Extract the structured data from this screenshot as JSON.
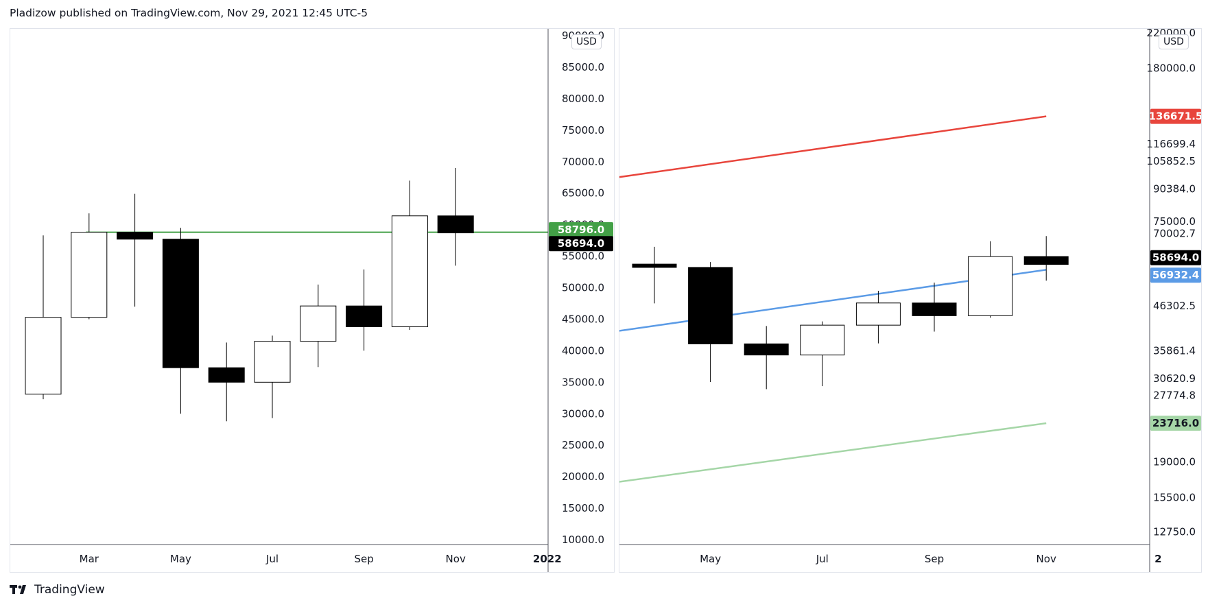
{
  "header": {
    "text": "Pladizow published on TradingView.com, Nov 29, 2021 12:45 UTC-5"
  },
  "footer": {
    "brand": "TradingView"
  },
  "colors": {
    "up_body": "#ffffff",
    "down_body": "#000000",
    "wick": "#000000",
    "green_line": "#43a047",
    "blue_line": "#5b9be6",
    "red_line": "#e8453c",
    "light_green_line": "#a5d6a7",
    "axis_border": "#50535e"
  },
  "chart_data": [
    {
      "type": "candlestick",
      "currency": "USD",
      "price_axis": {
        "min": 10000,
        "max": 90000,
        "scale": "linear",
        "ticks": [
          "10000.0",
          "15000.0",
          "20000.0",
          "25000.0",
          "30000.0",
          "35000.0",
          "40000.0",
          "45000.0",
          "50000.0",
          "55000.0",
          "60000.0",
          "65000.0",
          "70000.0",
          "75000.0",
          "80000.0",
          "85000.0",
          "90000.0"
        ]
      },
      "time_axis": [
        "Mar",
        "May",
        "Jul",
        "Sep",
        "Nov",
        "2022"
      ],
      "candles": [
        {
          "month": "Feb 2021",
          "open": 33100,
          "high": 58300,
          "low": 32300,
          "close": 45300
        },
        {
          "month": "Mar 2021",
          "open": 45300,
          "high": 61800,
          "low": 45000,
          "close": 58800
        },
        {
          "month": "Apr 2021",
          "open": 58800,
          "high": 64900,
          "low": 47000,
          "close": 57700
        },
        {
          "month": "May 2021",
          "open": 57700,
          "high": 59500,
          "low": 30000,
          "close": 37300
        },
        {
          "month": "Jun 2021",
          "open": 37300,
          "high": 41300,
          "low": 28800,
          "close": 35000
        },
        {
          "month": "Jul 2021",
          "open": 35000,
          "high": 42400,
          "low": 29300,
          "close": 41500
        },
        {
          "month": "Aug 2021",
          "open": 41500,
          "high": 50500,
          "low": 37400,
          "close": 47100
        },
        {
          "month": "Sep 2021",
          "open": 47100,
          "high": 52900,
          "low": 40000,
          "close": 43800
        },
        {
          "month": "Oct 2021",
          "open": 43800,
          "high": 67000,
          "low": 43300,
          "close": 61400
        },
        {
          "month": "Nov 2021",
          "open": 61400,
          "high": 69000,
          "low": 53500,
          "close": 58700
        }
      ],
      "horizontal_line": {
        "price": 58796,
        "label": "58796.0"
      },
      "price_labels": [
        {
          "value": "58796.0",
          "kind": "line"
        },
        {
          "value": "58694.0",
          "kind": "last-price"
        }
      ]
    },
    {
      "type": "candlestick",
      "currency": "USD",
      "price_axis": {
        "scale": "log",
        "min": 11500,
        "max": 220000,
        "ticks": [
          "220000.0",
          "180000.0",
          "136671.5",
          "116699.4",
          "105852.5",
          "90384.0",
          "75000.0",
          "70002.7",
          "58694.0",
          "56932.4",
          "46302.5",
          "35861.4",
          "30620.9",
          "27774.8",
          "23716.0",
          "19000.0",
          "15500.0",
          "12750.0"
        ]
      },
      "time_axis": [
        "May",
        "Jul",
        "Sep",
        "Nov",
        "2"
      ],
      "candles": [
        {
          "month": "Apr 2021",
          "open": 58800,
          "high": 64900,
          "low": 47000,
          "close": 57700
        },
        {
          "month": "May 2021",
          "open": 57700,
          "high": 59500,
          "low": 30000,
          "close": 37300
        },
        {
          "month": "Jun 2021",
          "open": 37300,
          "high": 41300,
          "low": 28800,
          "close": 35000
        },
        {
          "month": "Jul 2021",
          "open": 35000,
          "high": 42400,
          "low": 29300,
          "close": 41500
        },
        {
          "month": "Aug 2021",
          "open": 41500,
          "high": 50500,
          "low": 37400,
          "close": 47100
        },
        {
          "month": "Sep 2021",
          "open": 47100,
          "high": 52900,
          "low": 40000,
          "close": 43800
        },
        {
          "month": "Oct 2021",
          "open": 43800,
          "high": 67000,
          "low": 43300,
          "close": 61400
        },
        {
          "month": "Nov 2021",
          "open": 61400,
          "high": 69000,
          "low": 53500,
          "close": 58700
        }
      ],
      "trend_lines": [
        {
          "name": "upper",
          "start": {
            "month": "Mar 2021",
            "price": 95000
          },
          "end": {
            "month": "Nov 2021",
            "price": 136671.5
          }
        },
        {
          "name": "middle",
          "start": {
            "month": "Mar 2021",
            "price": 39500
          },
          "end": {
            "month": "Nov 2021",
            "price": 56932.4
          }
        },
        {
          "name": "lower",
          "start": {
            "month": "Mar 2021",
            "price": 16700
          },
          "end": {
            "month": "Nov 2021",
            "price": 23716.0
          }
        }
      ],
      "price_labels": [
        {
          "value": "136671.5",
          "kind": "upper"
        },
        {
          "value": "58694.0",
          "kind": "last-price"
        },
        {
          "value": "56932.4",
          "kind": "middle"
        },
        {
          "value": "23716.0",
          "kind": "lower"
        }
      ]
    }
  ]
}
